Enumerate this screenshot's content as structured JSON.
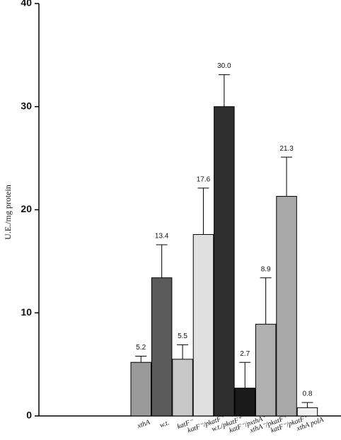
{
  "chart_data": {
    "type": "bar",
    "y_label": "U.E./mg protein",
    "categories": [
      "xthA",
      "w.t.",
      "katF⁻",
      "katF⁻/pkatF⁺",
      "w.t./pkatF⁺",
      "katF⁻/pxthA⁺",
      "xthA⁻/pkatF⁺",
      "katF⁻/pkatF⁺",
      "xthA polA"
    ],
    "values": [
      5.2,
      13.4,
      5.5,
      17.6,
      30.0,
      2.7,
      8.9,
      21.3,
      0.8
    ],
    "value_labels": [
      "5.2",
      "13.4",
      "5.5",
      "17.6",
      "30.0",
      "2.7",
      "8.9",
      "21.3",
      "0.8"
    ],
    "errors": [
      0.6,
      3.2,
      1.4,
      4.5,
      3.1,
      2.5,
      4.5,
      3.8,
      0.5
    ],
    "colors": [
      "#9a9a9a",
      "#5a5a5a",
      "#c8c8c8",
      "#e0e0e0",
      "#2e2e2e",
      "#1a1a1a",
      "#b0b0b0",
      "#a8a8a8",
      "#f0f0f0"
    ],
    "ylim": [
      0,
      40
    ],
    "yticks": [
      0,
      10,
      20,
      30,
      40
    ]
  }
}
